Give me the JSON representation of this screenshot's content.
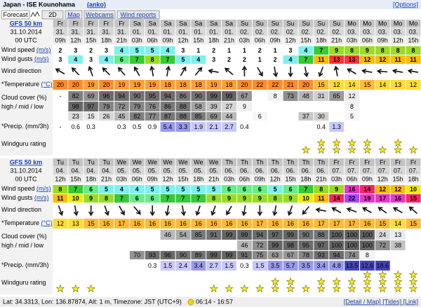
{
  "header": {
    "title": "Japan - ISE Kounohama",
    "code": "(anko)",
    "options": "[Options]"
  },
  "tabs": [
    "Forecast",
    "2D",
    "Map",
    "Webcams",
    "Wind reports"
  ],
  "labels": {
    "wind_speed": "Wind speed",
    "unit_ms": "(m/s)",
    "wind_gusts": "Wind gusts",
    "wind_direction": "Wind direction",
    "temperature": "*Temperature",
    "unit_c": "(°C)",
    "cloud": "Cloud cover (%)",
    "cloud_levels": "high / mid / low",
    "precip": "*Precip. (mm/3h)",
    "rating": "Windguru rating"
  },
  "tables": [
    {
      "model": "GFS 50 km",
      "date": "31.10.2014",
      "run": "00 UTC",
      "days": [
        "Fr",
        "Fr",
        "Fr",
        "Fr",
        "Fr",
        "Sa",
        "Sa",
        "Sa",
        "Sa",
        "Sa",
        "Sa",
        "Sa",
        "Su",
        "Su",
        "Su",
        "Su",
        "Su",
        "Su",
        "Su",
        "Mo",
        "Mo",
        "Mo",
        "Mo",
        "Mo"
      ],
      "dates": [
        "31.",
        "31.",
        "31.",
        "31.",
        "31.",
        "01.",
        "01.",
        "01.",
        "01.",
        "01.",
        "01.",
        "01.",
        "02.",
        "02.",
        "02.",
        "02.",
        "02.",
        "02.",
        "02.",
        "03.",
        "03.",
        "03.",
        "03.",
        "03."
      ],
      "hours": [
        "09h",
        "12h",
        "15h",
        "18h",
        "21h",
        "03h",
        "06h",
        "09h",
        "12h",
        "15h",
        "18h",
        "21h",
        "03h",
        "06h",
        "09h",
        "12h",
        "15h",
        "18h",
        "21h",
        "03h",
        "06h",
        "09h",
        "12h",
        "15h"
      ],
      "wind_speed": [
        2,
        3,
        2,
        3,
        4,
        5,
        5,
        4,
        3,
        1,
        2,
        1,
        1,
        2,
        1,
        3,
        4,
        7,
        9,
        8,
        9,
        8,
        8,
        8
      ],
      "wind_gusts": [
        3,
        4,
        3,
        4,
        6,
        7,
        8,
        7,
        5,
        4,
        3,
        2,
        2,
        1,
        2,
        4,
        7,
        11,
        13,
        13,
        12,
        12,
        11,
        11
      ],
      "wind_direction": [
        300,
        315,
        340,
        315,
        320,
        330,
        350,
        10,
        30,
        40,
        280,
        310,
        0,
        150,
        170,
        180,
        170,
        200,
        350,
        300,
        280,
        275,
        280,
        280
      ],
      "temperature": [
        20,
        20,
        19,
        20,
        19,
        19,
        19,
        18,
        18,
        18,
        19,
        18,
        20,
        22,
        22,
        21,
        20,
        15,
        12,
        14,
        15,
        14,
        13,
        12
      ],
      "cloud_high": [
        "-",
        82,
        69,
        96,
        94,
        90,
        95,
        94,
        86,
        90,
        99,
        99,
        67,
        null,
        8,
        73,
        48,
        31,
        65,
        12,
        null,
        null,
        null,
        null
      ],
      "cloud_mid": [
        null,
        98,
        97,
        79,
        72,
        79,
        76,
        86,
        88,
        58,
        39,
        27,
        9,
        null,
        null,
        null,
        null,
        null,
        null,
        8,
        null,
        null,
        null,
        null
      ],
      "cloud_low": [
        null,
        23,
        15,
        26,
        45,
        82,
        77,
        87,
        88,
        85,
        69,
        44,
        null,
        6,
        null,
        null,
        37,
        30,
        null,
        5,
        null,
        null,
        null,
        null
      ],
      "precip": [
        "-",
        0.6,
        0.3,
        null,
        0.3,
        0.5,
        0.9,
        5.4,
        3.3,
        1.9,
        2.1,
        2.7,
        0.4,
        null,
        null,
        null,
        null,
        0.4,
        1.3,
        null,
        null,
        null,
        null,
        null
      ],
      "rating": [
        null,
        null,
        null,
        null,
        null,
        null,
        null,
        null,
        null,
        null,
        null,
        null,
        null,
        null,
        null,
        null,
        1,
        2,
        2,
        2,
        2,
        1,
        2,
        1
      ]
    },
    {
      "model": "GFS 50 km",
      "date": "31.10.2014",
      "run": "00 UTC",
      "days": [
        "Tu",
        "Tu",
        "Tu",
        "Tu",
        "We",
        "We",
        "We",
        "We",
        "We",
        "We",
        "We",
        "Th",
        "Th",
        "Th",
        "Th",
        "Th",
        "Th",
        "Th",
        "Fr",
        "Fr",
        "Fr",
        "Fr",
        "Fr",
        "Fr"
      ],
      "dates": [
        "04.",
        "04.",
        "04.",
        "04.",
        "05.",
        "05.",
        "05.",
        "05.",
        "05.",
        "05.",
        "05.",
        "06.",
        "06.",
        "06.",
        "06.",
        "06.",
        "06.",
        "06.",
        "07.",
        "07.",
        "07.",
        "07.",
        "07.",
        "07."
      ],
      "hours": [
        "12h",
        "15h",
        "18h",
        "21h",
        "03h",
        "06h",
        "09h",
        "12h",
        "15h",
        "18h",
        "21h",
        "03h",
        "06h",
        "09h",
        "12h",
        "15h",
        "18h",
        "21h",
        "03h",
        "06h",
        "09h",
        "12h",
        "15h",
        "18h"
      ],
      "wind_speed": [
        8,
        7,
        6,
        5,
        4,
        4,
        5,
        5,
        5,
        5,
        5,
        6,
        6,
        6,
        5,
        6,
        7,
        8,
        9,
        16,
        14,
        12,
        12,
        10
      ],
      "wind_gusts": [
        11,
        10,
        9,
        8,
        7,
        6,
        6,
        7,
        7,
        7,
        8,
        9,
        9,
        9,
        8,
        9,
        10,
        11,
        14,
        22,
        19,
        17,
        16,
        15
      ],
      "wind_direction": [
        160,
        170,
        180,
        160,
        150,
        140,
        180,
        190,
        170,
        200,
        200,
        210,
        190,
        180,
        190,
        200,
        220,
        280,
        300,
        290,
        300,
        305,
        300,
        310
      ],
      "temperature": [
        12,
        13,
        15,
        16,
        17,
        16,
        16,
        16,
        16,
        16,
        16,
        16,
        16,
        17,
        16,
        16,
        16,
        17,
        17,
        17,
        16,
        15,
        14,
        15
      ],
      "cloud_high": [
        null,
        null,
        null,
        null,
        null,
        null,
        null,
        46,
        54,
        85,
        91,
        99,
        99,
        94,
        97,
        99,
        90,
        88,
        100,
        100,
        100,
        24,
        13,
        null
      ],
      "cloud_mid": [
        null,
        null,
        null,
        null,
        null,
        null,
        null,
        null,
        null,
        null,
        null,
        null,
        46,
        72,
        99,
        98,
        95,
        97,
        100,
        100,
        100,
        72,
        38,
        null
      ],
      "cloud_low": [
        null,
        null,
        null,
        null,
        null,
        70,
        93,
        96,
        90,
        89,
        99,
        99,
        91,
        75,
        63,
        67,
        78,
        93,
        94,
        74,
        8,
        null,
        null,
        null
      ],
      "precip": [
        null,
        null,
        null,
        null,
        null,
        null,
        0.3,
        1.5,
        2.4,
        3.4,
        2.7,
        1.5,
        0.3,
        1.5,
        3.5,
        5.7,
        3.5,
        3.4,
        4.8,
        13.5,
        12.6,
        18.6,
        null,
        null
      ],
      "rating": [
        1,
        1,
        1,
        null,
        null,
        null,
        null,
        null,
        null,
        null,
        1,
        1,
        1,
        1,
        2,
        2,
        1,
        2,
        2,
        2,
        3,
        3,
        3,
        3
      ]
    }
  ],
  "footer": {
    "location": "Lat: 34.3313, Lon: 136.87874, Alt: 1 m, Timezone: JST (UTC+9)",
    "sun": "06:14 - 16:57",
    "links": "[Detail / Map] [Tides] [Link]"
  }
}
